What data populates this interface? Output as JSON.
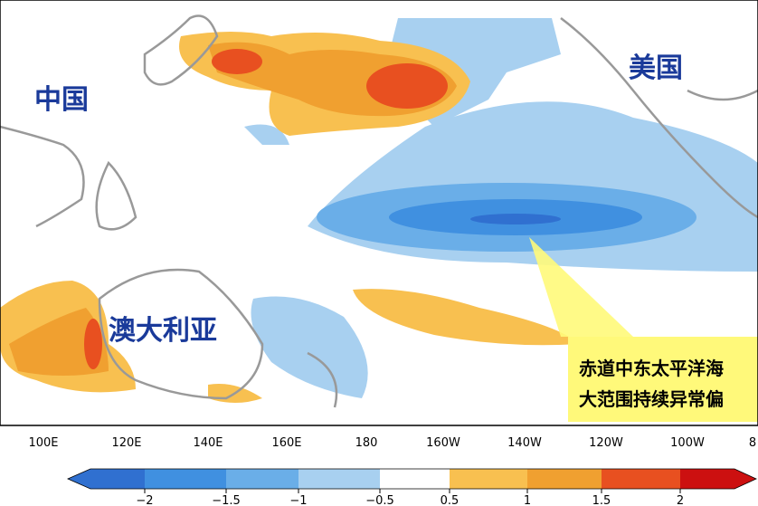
{
  "map": {
    "labels": {
      "china": "中国",
      "usa": "美国",
      "australia": "澳大利亚"
    },
    "callout": [
      "赤道中东太平洋海",
      "大范围持续异常偏"
    ],
    "longitudes": [
      "100E",
      "120E",
      "140E",
      "160E",
      "180",
      "160W",
      "140W",
      "120W",
      "100W",
      "8"
    ],
    "colorbar": [
      "−2",
      "−1.5",
      "−1",
      "−0.5",
      "0.5",
      "1",
      "1.5",
      "2"
    ]
  }
}
